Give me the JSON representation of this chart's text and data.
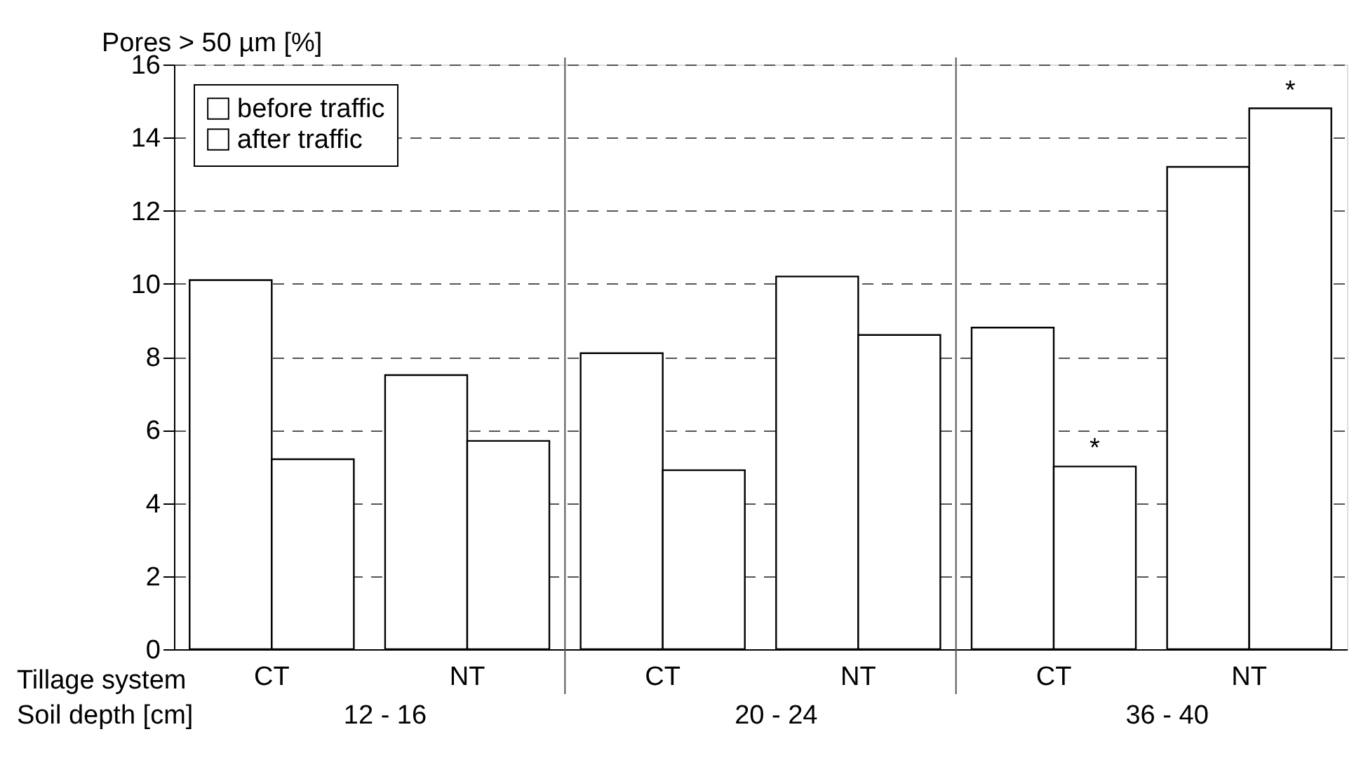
{
  "chart_data": {
    "type": "bar",
    "ylabel": "Pores > 50 µm [%]",
    "categories": [
      "CT",
      "NT",
      "CT",
      "NT",
      "CT",
      "NT"
    ],
    "series": [
      {
        "name": "before traffic",
        "color": "#ffffff",
        "values": [
          10.1,
          7.5,
          8.1,
          10.2,
          8.8,
          13.2
        ]
      },
      {
        "name": "after traffic",
        "color": "#ffffff",
        "values": [
          5.2,
          5.7,
          4.9,
          8.6,
          5.0,
          14.8
        ],
        "value_labels": [
          null,
          null,
          null,
          null,
          "*",
          "*"
        ]
      }
    ],
    "ylim": [
      0,
      16
    ],
    "yticks": [
      0,
      2,
      4,
      6,
      8,
      10,
      12,
      14,
      16
    ],
    "grid": "y",
    "legend": "top left",
    "annotations": [
      "Tillage system",
      "Soil depth [cm]",
      "12 - 16",
      "20 - 24",
      "36 - 40"
    ]
  }
}
